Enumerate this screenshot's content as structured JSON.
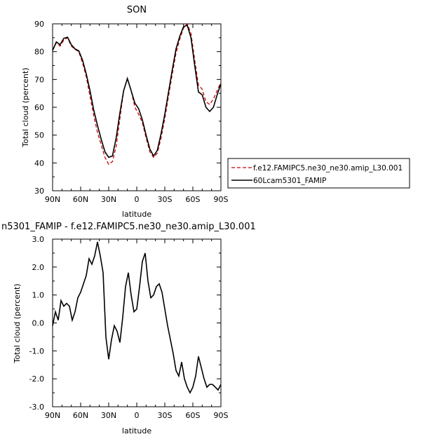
{
  "chart_data": [
    {
      "type": "line",
      "title": "SON",
      "xlabel": "latitude",
      "ylabel": "Total cloud (percent)",
      "xlim": [
        90,
        -90
      ],
      "ylim": [
        30,
        90
      ],
      "x_ticks": [
        90,
        60,
        30,
        0,
        -30,
        -60,
        -90
      ],
      "x_tick_labels": [
        "90N",
        "60N",
        "30N",
        "0",
        "30S",
        "60S",
        "90S"
      ],
      "y_ticks": [
        30,
        40,
        50,
        60,
        70,
        80,
        90
      ],
      "y_tick_labels": [
        "30",
        "40",
        "50",
        "60",
        "70",
        "80",
        "90"
      ],
      "legend_position": "right",
      "series": [
        {
          "name": "f.e12.FAMIPC5.ne30_ne30.amip_L30.001",
          "color": "#cc0000",
          "dash": "dashed",
          "x": [
            90,
            86,
            82,
            78,
            74,
            70,
            66,
            62,
            58,
            54,
            50,
            46,
            42,
            38,
            34,
            30,
            26,
            22,
            18,
            14,
            10,
            6,
            2,
            -2,
            -6,
            -10,
            -14,
            -18,
            -22,
            -26,
            -30,
            -34,
            -38,
            -42,
            -46,
            -50,
            -54,
            -58,
            -62,
            -66,
            -70,
            -74,
            -78,
            -82,
            -86,
            -90
          ],
          "y": [
            80.5,
            83.2,
            82.0,
            84.2,
            85.0,
            82.0,
            80.8,
            80.0,
            76.0,
            71.0,
            64.0,
            57.0,
            51.0,
            46.5,
            42.0,
            39.5,
            40.5,
            46.0,
            56.0,
            66.0,
            70.5,
            66.0,
            60.0,
            57.5,
            54.5,
            49.0,
            44.0,
            42.0,
            43.5,
            49.0,
            56.0,
            64.0,
            72.0,
            79.5,
            84.5,
            88.5,
            90.0,
            86.5,
            77.0,
            68.0,
            66.5,
            62.0,
            61.0,
            63.0,
            66.0,
            69.0
          ]
        },
        {
          "name": "60Lcam5301_FAMIP",
          "color": "#000000",
          "dash": "solid",
          "x": [
            90,
            86,
            82,
            78,
            74,
            70,
            66,
            62,
            58,
            54,
            50,
            46,
            42,
            38,
            34,
            30,
            26,
            22,
            18,
            14,
            10,
            6,
            2,
            -2,
            -6,
            -10,
            -14,
            -18,
            -22,
            -26,
            -30,
            -34,
            -38,
            -42,
            -46,
            -50,
            -54,
            -58,
            -62,
            -66,
            -70,
            -74,
            -78,
            -82,
            -86,
            -90
          ],
          "y": [
            80.4,
            83.5,
            82.5,
            84.8,
            85.2,
            82.5,
            81.0,
            80.3,
            77.0,
            72.0,
            66.0,
            59.0,
            53.5,
            48.5,
            44.0,
            42.0,
            42.5,
            49.0,
            58.0,
            66.0,
            70.3,
            66.0,
            61.5,
            59.5,
            55.5,
            50.0,
            45.0,
            42.5,
            44.5,
            50.5,
            57.5,
            65.5,
            73.5,
            81.0,
            85.5,
            89.0,
            89.5,
            85.0,
            75.0,
            65.5,
            64.5,
            60.0,
            58.5,
            60.0,
            64.5,
            68.5
          ]
        }
      ]
    },
    {
      "type": "line",
      "title": "n5301_FAMIP  -  f.e12.FAMIPC5.ne30_ne30.amip_L30.001",
      "xlabel": "latitude",
      "ylabel": "Total cloud (percent)",
      "xlim": [
        90,
        -90
      ],
      "ylim": [
        -3.0,
        3.0
      ],
      "x_ticks": [
        90,
        60,
        30,
        0,
        -30,
        -60,
        -90
      ],
      "x_tick_labels": [
        "90N",
        "60N",
        "30N",
        "0",
        "30S",
        "60S",
        "90S"
      ],
      "y_ticks": [
        -3,
        -2,
        -1,
        0,
        1,
        2,
        3
      ],
      "y_tick_labels": [
        "-3.0",
        "-2.0",
        "-1.0",
        "0.0",
        "1.0",
        "2.0",
        "3.0"
      ],
      "series": [
        {
          "name": "",
          "color": "#000000",
          "dash": "solid",
          "x": [
            90,
            87,
            84,
            81,
            78,
            75,
            72,
            69,
            66,
            63,
            60,
            57,
            54,
            51,
            48,
            45,
            42,
            39,
            36,
            33,
            30,
            27,
            24,
            21,
            18,
            15,
            12,
            9,
            6,
            3,
            0,
            -3,
            -6,
            -9,
            -12,
            -15,
            -18,
            -21,
            -24,
            -27,
            -30,
            -33,
            -36,
            -39,
            -42,
            -45,
            -48,
            -51,
            -54,
            -57,
            -60,
            -63,
            -66,
            -69,
            -72,
            -75,
            -78,
            -81,
            -84,
            -87,
            -90
          ],
          "y": [
            -0.1,
            0.4,
            0.1,
            0.8,
            0.6,
            0.7,
            0.6,
            0.1,
            0.4,
            0.9,
            1.1,
            1.4,
            1.7,
            2.3,
            2.1,
            2.4,
            2.9,
            2.4,
            1.8,
            -0.5,
            -1.3,
            -0.6,
            -0.1,
            -0.3,
            -0.7,
            0.2,
            1.3,
            1.8,
            1.0,
            0.4,
            0.5,
            1.3,
            2.2,
            2.5,
            1.5,
            0.9,
            1.0,
            1.3,
            1.4,
            1.1,
            0.5,
            -0.1,
            -0.6,
            -1.1,
            -1.7,
            -1.9,
            -1.4,
            -2.0,
            -2.3,
            -2.5,
            -2.3,
            -1.9,
            -1.2,
            -1.6,
            -2.0,
            -2.3,
            -2.2,
            -2.2,
            -2.3,
            -2.4,
            -2.2
          ]
        }
      ]
    }
  ]
}
